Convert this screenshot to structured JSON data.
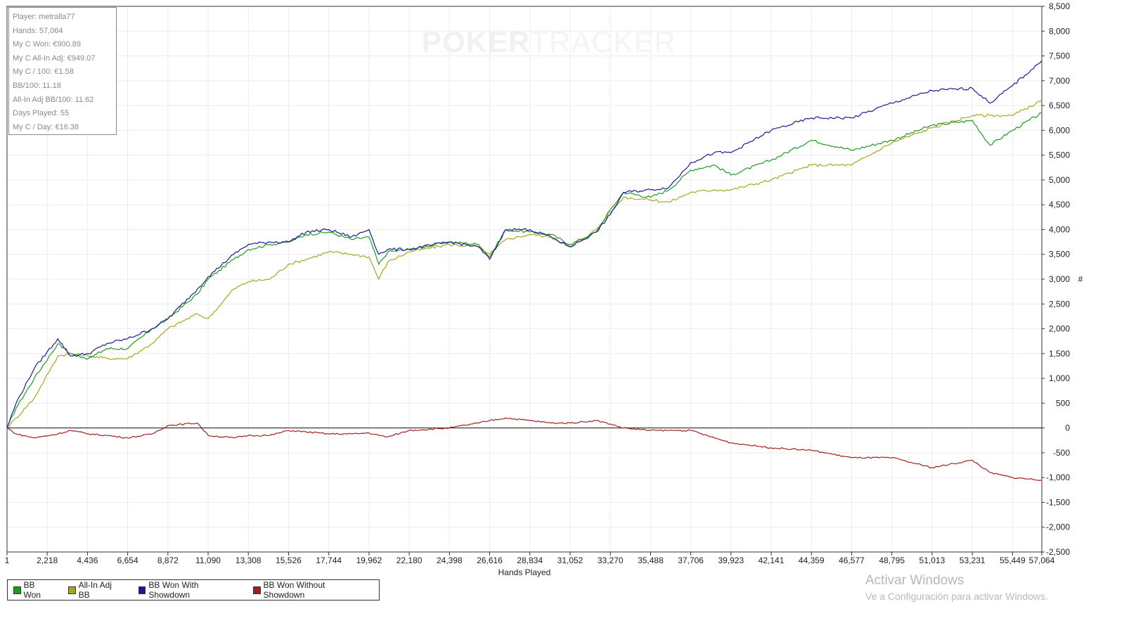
{
  "watermark": {
    "part1": "POKER",
    "part2": "TRACKER"
  },
  "stats": [
    "Player: metralla77",
    "Hands: 57,064",
    "My C Won: €900.89",
    "My C All-In Adj: €949.07",
    "My C / 100: €1.58",
    "BB/100: 11.18",
    "All-In Adj BB/100: 11.62",
    "Days Played: 55",
    "My C / Day: €16.38"
  ],
  "windows_activation": {
    "title": "Activar Windows",
    "subtitle": "Ve a Configuración para activar Windows."
  },
  "chart_data": {
    "type": "line",
    "title": "",
    "xlabel": "Hands Played",
    "ylabel": "#",
    "xlim": [
      1,
      57064
    ],
    "ylim": [
      -2500,
      8500
    ],
    "grid": true,
    "legend_position": "bottom-left",
    "x_ticks": [
      "1",
      "2,218",
      "4,436",
      "6,654",
      "8,872",
      "11,090",
      "13,308",
      "15,526",
      "17,744",
      "19,962",
      "22,180",
      "24,398",
      "26,616",
      "28,834",
      "31,052",
      "33,270",
      "35,488",
      "37,706",
      "39,923",
      "42,141",
      "44,359",
      "46,577",
      "48,795",
      "51,013",
      "53,231",
      "55,449",
      "57,064"
    ],
    "y_ticks": [
      "8,500",
      "8,000",
      "7,500",
      "7,000",
      "6,500",
      "6,000",
      "5,500",
      "5,000",
      "4,500",
      "4,000",
      "3,500",
      "3,000",
      "2,500",
      "2,000",
      "1,500",
      "1,000",
      "500",
      "0",
      "-500",
      "-1,000",
      "-1,500",
      "-2,000",
      "-2,500"
    ],
    "x": [
      1,
      500,
      1500,
      2800,
      3500,
      4500,
      5500,
      6654,
      8000,
      8872,
      10500,
      11090,
      12500,
      13308,
      14500,
      15526,
      16500,
      17744,
      19000,
      19962,
      20500,
      21000,
      22180,
      24398,
      26000,
      26616,
      27500,
      28834,
      30000,
      31052,
      32500,
      33270,
      34000,
      35488,
      36500,
      37706,
      39000,
      39923,
      42141,
      44359,
      46577,
      48795,
      51013,
      53231,
      54200,
      55449,
      57064
    ],
    "series": [
      {
        "name": "BB Won",
        "color": "#1f9a1f",
        "values": [
          0,
          400,
          1000,
          1700,
          1500,
          1400,
          1600,
          1600,
          2000,
          2200,
          2700,
          3000,
          3400,
          3600,
          3700,
          3750,
          3900,
          3950,
          3800,
          3850,
          3300,
          3550,
          3600,
          3750,
          3700,
          3450,
          4000,
          3950,
          3900,
          3700,
          3950,
          4400,
          4750,
          4650,
          4800,
          5200,
          5300,
          5100,
          5400,
          5800,
          5600,
          5800,
          6100,
          6200,
          5700,
          6000,
          6350
        ]
      },
      {
        "name": "All-In Adj BB",
        "color": "#a6a623",
        "values": [
          0,
          200,
          600,
          1450,
          1500,
          1450,
          1400,
          1400,
          1700,
          2000,
          2300,
          2200,
          2800,
          2950,
          3000,
          3300,
          3400,
          3550,
          3500,
          3450,
          3000,
          3350,
          3550,
          3700,
          3650,
          3500,
          3800,
          3900,
          3850,
          3650,
          4000,
          4350,
          4650,
          4600,
          4550,
          4750,
          4800,
          4800,
          5000,
          5300,
          5300,
          5750,
          6050,
          6300,
          6300,
          6300,
          6600
        ]
      },
      {
        "name": "BB Won With Showdown",
        "color": "#1a1a9a",
        "values": [
          0,
          500,
          1200,
          1800,
          1450,
          1500,
          1700,
          1800,
          2000,
          2200,
          2800,
          3050,
          3500,
          3700,
          3750,
          3750,
          3950,
          4000,
          3850,
          4000,
          3500,
          3600,
          3600,
          3750,
          3650,
          3400,
          4000,
          4000,
          3850,
          3650,
          3950,
          4300,
          4750,
          4800,
          4850,
          5350,
          5550,
          5550,
          6000,
          6250,
          6250,
          6550,
          6800,
          6850,
          6550,
          6900,
          7400
        ]
      },
      {
        "name": "BB Won Without Showdown",
        "color": "#a31e1e",
        "values": [
          0,
          -120,
          -200,
          -120,
          -50,
          -120,
          -150,
          -200,
          -120,
          50,
          100,
          -150,
          -200,
          -150,
          -150,
          -50,
          -80,
          -120,
          -120,
          -100,
          -150,
          -180,
          -50,
          0,
          100,
          150,
          200,
          150,
          100,
          100,
          150,
          80,
          0,
          -50,
          -50,
          -50,
          -200,
          -300,
          -400,
          -450,
          -600,
          -600,
          -800,
          -650,
          -900,
          -1000,
          -1050
        ]
      }
    ]
  }
}
